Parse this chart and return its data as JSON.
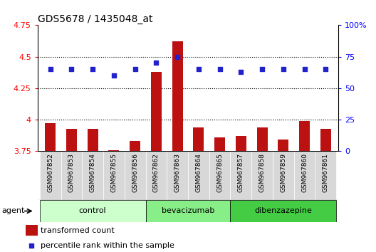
{
  "title": "GDS5678 / 1435048_at",
  "samples": [
    "GSM967852",
    "GSM967853",
    "GSM967854",
    "GSM967855",
    "GSM967856",
    "GSM967862",
    "GSM967863",
    "GSM967864",
    "GSM967865",
    "GSM967857",
    "GSM967858",
    "GSM967859",
    "GSM967860",
    "GSM967861"
  ],
  "transformed_counts": [
    3.97,
    3.93,
    3.93,
    3.76,
    3.83,
    4.38,
    4.62,
    3.94,
    3.86,
    3.87,
    3.94,
    3.84,
    3.99,
    3.93
  ],
  "percentile_ranks": [
    65,
    65,
    65,
    60,
    65,
    70,
    75,
    65,
    65,
    63,
    65,
    65,
    65,
    65
  ],
  "group_assignments": [
    0,
    0,
    0,
    0,
    0,
    1,
    1,
    1,
    1,
    2,
    2,
    2,
    2,
    2
  ],
  "group_labels": [
    "control",
    "bevacizumab",
    "dibenzazepine"
  ],
  "group_colors": [
    "#ccffcc",
    "#88ee88",
    "#44cc44"
  ],
  "bar_color": "#bb1111",
  "dot_color": "#2222cc",
  "ylim_left": [
    3.75,
    4.75
  ],
  "ylim_right": [
    0,
    100
  ],
  "yticks_left": [
    3.75,
    4.0,
    4.25,
    4.5,
    4.75
  ],
  "yticks_right": [
    0,
    25,
    50,
    75,
    100
  ],
  "ytick_labels_left": [
    "3.75",
    "4",
    "4.25",
    "4.5",
    "4.75"
  ],
  "ytick_labels_right": [
    "0",
    "25",
    "50",
    "75",
    "100%"
  ],
  "grid_values": [
    4.0,
    4.25,
    4.5
  ],
  "legend_bar_label": "transformed count",
  "legend_dot_label": "percentile rank within the sample",
  "agent_label": "agent",
  "tick_area_color": "#d8d8d8",
  "bar_width": 0.5
}
